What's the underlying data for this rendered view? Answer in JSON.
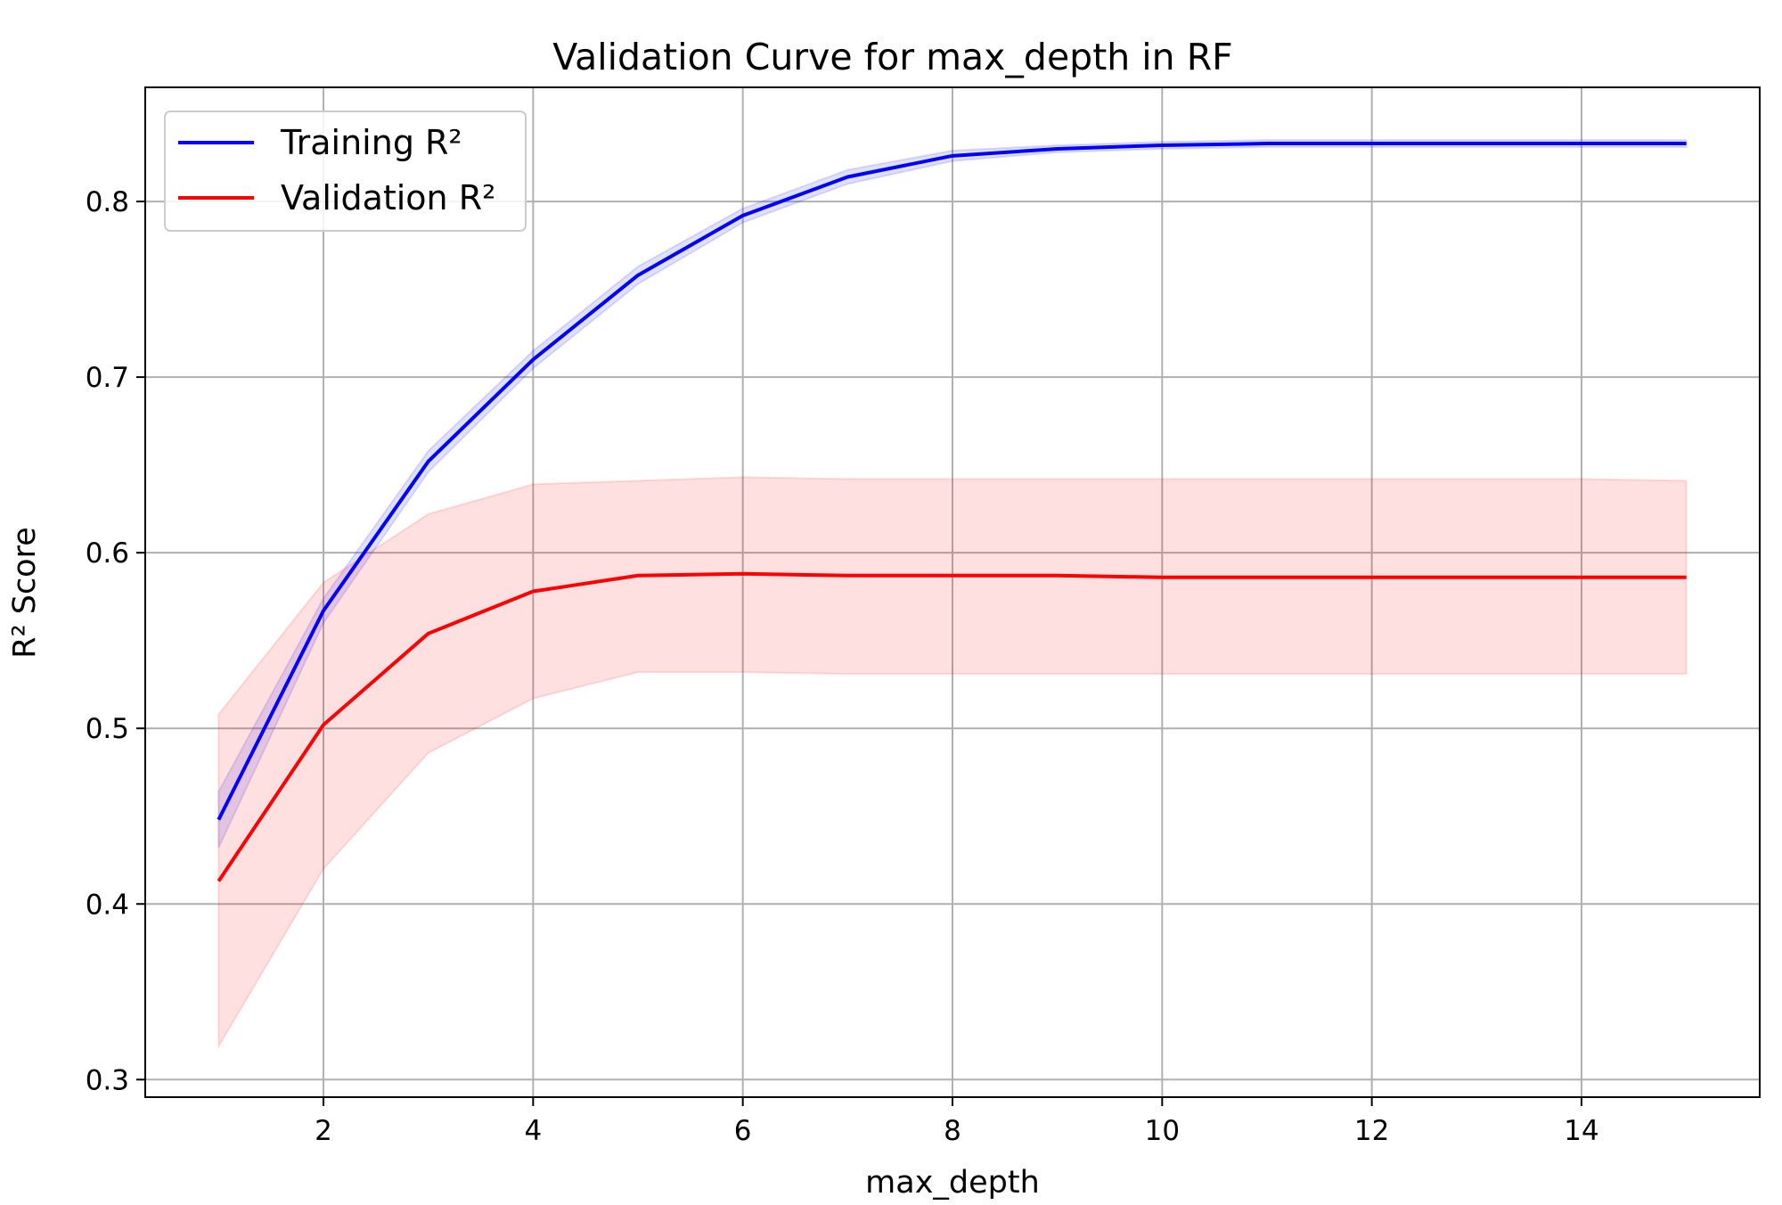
{
  "chart_data": {
    "type": "line",
    "title": "Validation Curve for max_depth in RF",
    "xlabel": "max_depth",
    "ylabel": "R² Score",
    "x": [
      1,
      2,
      3,
      4,
      5,
      6,
      7,
      8,
      9,
      10,
      11,
      12,
      13,
      14,
      15
    ],
    "xlim": [
      0.3,
      15.7
    ],
    "ylim": [
      0.29,
      0.865
    ],
    "xticks": [
      2,
      4,
      6,
      8,
      10,
      12,
      14
    ],
    "yticks": [
      0.3,
      0.4,
      0.5,
      0.6,
      0.7,
      0.8
    ],
    "grid": true,
    "legend_position": "top-left",
    "series": [
      {
        "name": "Training R²",
        "color": "#0000ff",
        "band_color": "#0000ff",
        "values": [
          0.448,
          0.567,
          0.652,
          0.71,
          0.758,
          0.792,
          0.814,
          0.826,
          0.83,
          0.832,
          0.833,
          0.833,
          0.833,
          0.833,
          0.833
        ],
        "band_lower": [
          0.432,
          0.56,
          0.646,
          0.705,
          0.753,
          0.788,
          0.81,
          0.823,
          0.828,
          0.83,
          0.831,
          0.831,
          0.831,
          0.831,
          0.831
        ],
        "band_upper": [
          0.464,
          0.574,
          0.658,
          0.715,
          0.763,
          0.796,
          0.818,
          0.829,
          0.832,
          0.834,
          0.835,
          0.835,
          0.835,
          0.835,
          0.835
        ]
      },
      {
        "name": "Validation R²",
        "color": "#ff0000",
        "band_color": "#ff0000",
        "values": [
          0.413,
          0.502,
          0.554,
          0.578,
          0.587,
          0.588,
          0.587,
          0.587,
          0.587,
          0.586,
          0.586,
          0.586,
          0.586,
          0.586,
          0.586
        ],
        "band_lower": [
          0.319,
          0.42,
          0.486,
          0.517,
          0.532,
          0.532,
          0.531,
          0.531,
          0.531,
          0.531,
          0.531,
          0.531,
          0.531,
          0.531,
          0.531
        ],
        "band_upper": [
          0.508,
          0.583,
          0.622,
          0.639,
          0.641,
          0.643,
          0.642,
          0.642,
          0.642,
          0.642,
          0.642,
          0.642,
          0.642,
          0.642,
          0.641
        ]
      }
    ]
  }
}
